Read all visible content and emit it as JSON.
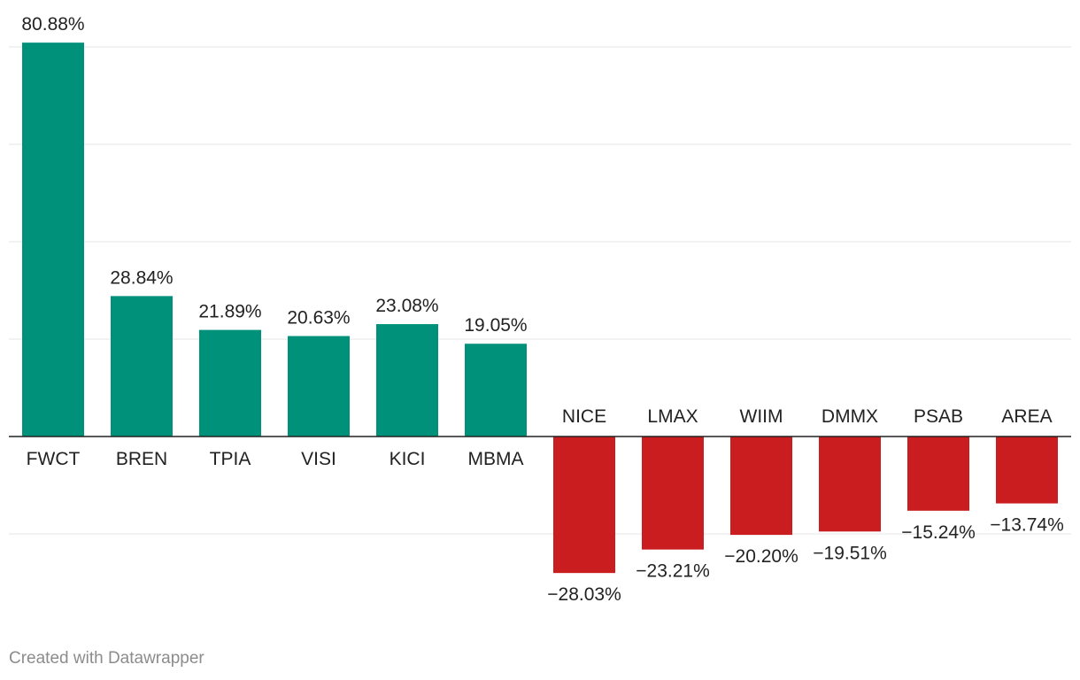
{
  "chart_data": {
    "type": "bar",
    "categories": [
      "FWCT",
      "BREN",
      "TPIA",
      "VISI",
      "KICI",
      "MBMA",
      "NICE",
      "LMAX",
      "WIIM",
      "DMMX",
      "PSAB",
      "AREA"
    ],
    "values": [
      80.88,
      28.84,
      21.89,
      20.63,
      23.08,
      19.05,
      -28.03,
      -23.21,
      -20.2,
      -19.51,
      -15.24,
      -13.74
    ],
    "value_labels": [
      "80.88%",
      "28.84%",
      "21.89%",
      "20.63%",
      "23.08%",
      "19.05%",
      "−28.03%",
      "−23.21%",
      "−20.20%",
      "−19.51%",
      "−15.24%",
      "−13.74%"
    ],
    "title": "",
    "xlabel": "",
    "ylabel": "",
    "ylim": [
      -20,
      80
    ],
    "gridlines": [
      -20,
      0,
      20,
      40,
      60,
      80
    ],
    "grid": true,
    "colors": {
      "positive": "#00917a",
      "negative": "#c91d1f"
    }
  },
  "footer": {
    "credit": "Created with Datawrapper"
  }
}
